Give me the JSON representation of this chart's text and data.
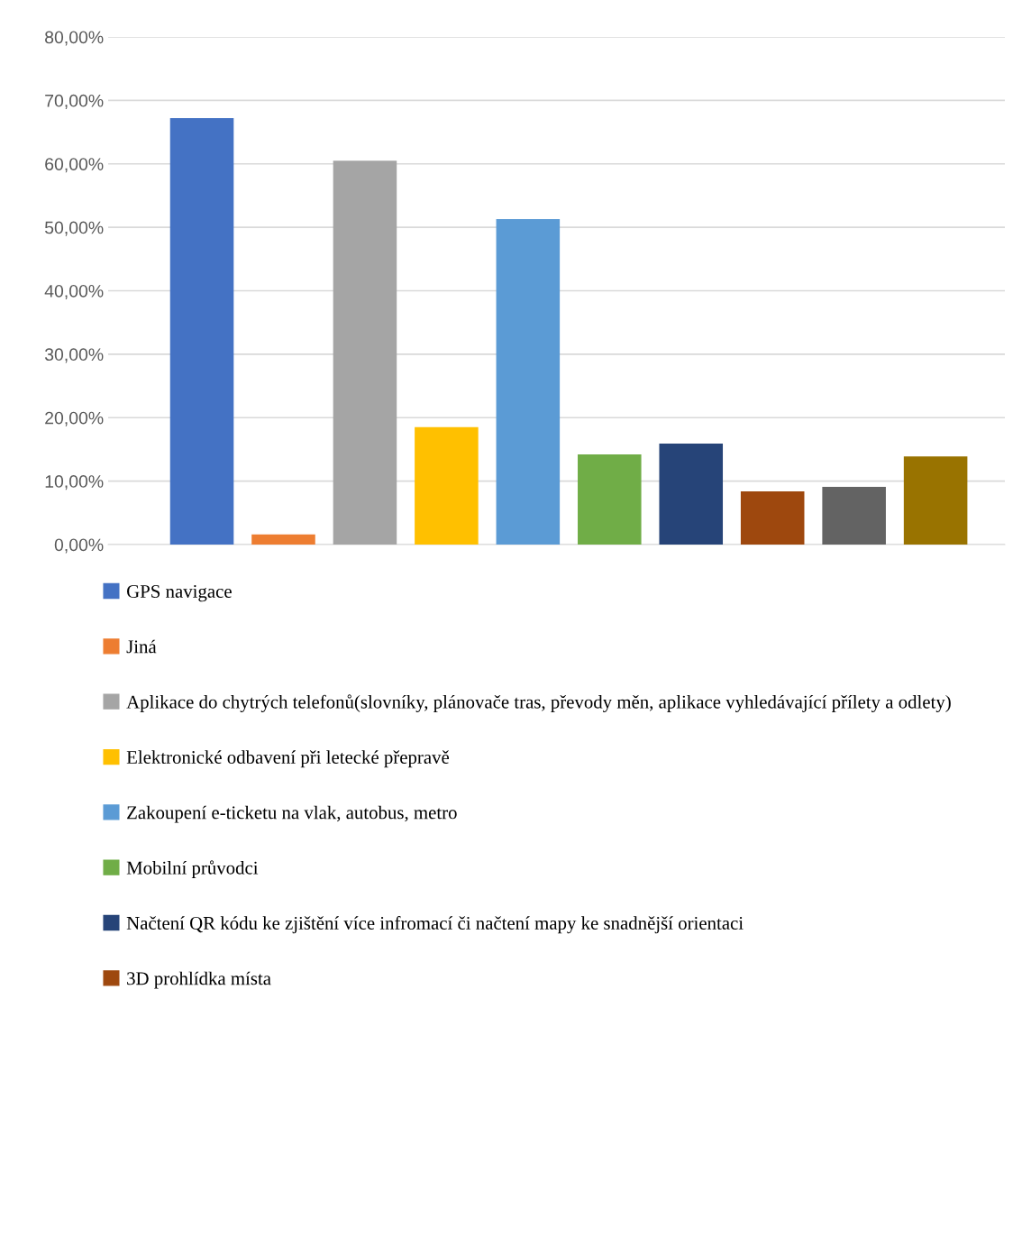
{
  "chart_data": {
    "type": "bar",
    "categories": [
      null,
      null,
      null,
      null,
      null,
      null,
      null,
      null,
      null,
      null
    ],
    "series": [
      {
        "name": "GPS navigace",
        "color": "#4472c4",
        "values": [
          67.2,
          null,
          null,
          null,
          null,
          null,
          null,
          null,
          null,
          null
        ]
      },
      {
        "name": "Jiná",
        "color": "#ed7d31",
        "values": [
          null,
          1.6,
          null,
          null,
          null,
          null,
          null,
          null,
          null,
          null
        ]
      },
      {
        "name": "Aplikace do chytrých telefonů(slovníky, plánovače tras, převody měn, aplikace vyhledávající přílety a odlety)",
        "color": "#a5a5a5",
        "values": [
          null,
          null,
          60.5,
          null,
          null,
          null,
          null,
          null,
          null,
          null
        ]
      },
      {
        "name": "Elektronické odbavení při letecké přepravě",
        "color": "#ffc000",
        "values": [
          null,
          null,
          null,
          18.5,
          null,
          null,
          null,
          null,
          null,
          null
        ]
      },
      {
        "name": "Zakoupení e-ticketu na vlak, autobus, metro",
        "color": "#5b9bd5",
        "values": [
          null,
          null,
          null,
          null,
          51.3,
          null,
          null,
          null,
          null,
          null
        ]
      },
      {
        "name": "Mobilní průvodci",
        "color": "#70ad47",
        "values": [
          null,
          null,
          null,
          null,
          null,
          14.2,
          null,
          null,
          null,
          null
        ]
      },
      {
        "name": "Načtení QR kódu ke zjištění více infromací či načtení mapy ke snadnější orientaci",
        "color": "#264478",
        "values": [
          null,
          null,
          null,
          null,
          null,
          null,
          15.9,
          null,
          null,
          null
        ]
      },
      {
        "name": "3D prohlídka místa",
        "color": "#9e480e",
        "values": [
          null,
          null,
          null,
          null,
          null,
          null,
          null,
          8.4,
          null,
          null
        ]
      },
      {
        "color": "#636363",
        "values": [
          null,
          null,
          null,
          null,
          null,
          null,
          null,
          null,
          9.1,
          null
        ]
      },
      {
        "color": "#997300",
        "values": [
          null,
          null,
          null,
          null,
          null,
          null,
          null,
          null,
          null,
          13.9
        ]
      }
    ],
    "ylim": [
      0,
      80
    ],
    "yticks": [
      {
        "value": 0,
        "label": "0,00%"
      },
      {
        "value": 10,
        "label": "10,00%"
      },
      {
        "value": 20,
        "label": "20,00%"
      },
      {
        "value": 30,
        "label": "30,00%"
      },
      {
        "value": 40,
        "label": "40,00%"
      },
      {
        "value": 50,
        "label": "50,00%"
      },
      {
        "value": 60,
        "label": "60,00%"
      },
      {
        "value": 70,
        "label": "70,00%"
      },
      {
        "value": 80,
        "label": "80,00%"
      }
    ],
    "grid": "y",
    "legend": "bottom",
    "stacked": true
  }
}
